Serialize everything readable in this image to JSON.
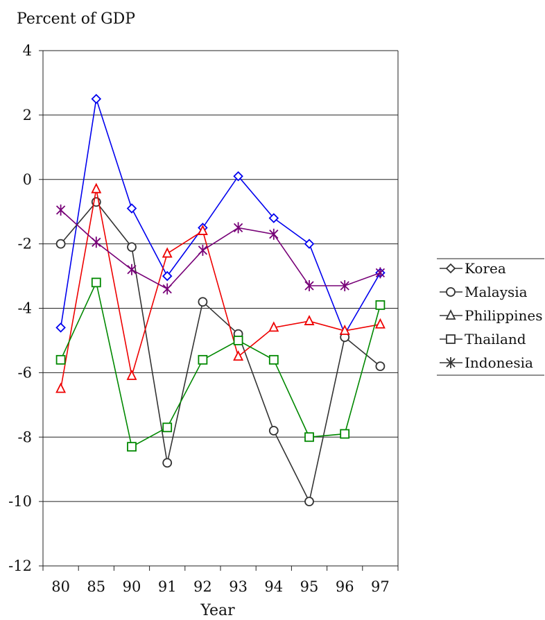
{
  "chart_data": {
    "type": "line",
    "title": "",
    "ylabel": "Percent of GDP",
    "xlabel": "Year",
    "categories": [
      "80",
      "85",
      "90",
      "91",
      "92",
      "93",
      "94",
      "95",
      "96",
      "97"
    ],
    "ylim": [
      -12,
      4
    ],
    "yticks": [
      4,
      2,
      0,
      -2,
      -4,
      -6,
      -8,
      -10,
      -12
    ],
    "ytick_labels": [
      "4",
      "2",
      "0",
      "-2",
      "-4",
      "-6",
      "-8",
      "-10",
      "-12"
    ],
    "grid": "horizontal",
    "legend_position": "right",
    "series": [
      {
        "name": "Korea",
        "marker": "diamond",
        "color": "#0000ee",
        "legend_color": "#333333",
        "values": [
          -4.6,
          2.5,
          -0.9,
          -3.0,
          -1.5,
          0.1,
          -1.2,
          -2.0,
          -4.8,
          -2.9
        ]
      },
      {
        "name": "Malaysia",
        "marker": "circle",
        "color": "#333333",
        "legend_color": "#333333",
        "values": [
          -2.0,
          -0.7,
          -2.1,
          -8.8,
          -3.8,
          -4.8,
          -7.8,
          -10.0,
          -4.9,
          -5.8
        ]
      },
      {
        "name": "Philippines",
        "marker": "triangle",
        "color": "#ee0000",
        "legend_color": "#333333",
        "values": [
          -6.5,
          -0.3,
          -6.1,
          -2.3,
          -1.6,
          -5.5,
          -4.6,
          -4.4,
          -4.7,
          -4.5
        ]
      },
      {
        "name": "Thailand",
        "marker": "square",
        "color": "#008800",
        "legend_color": "#333333",
        "values": [
          -5.6,
          -3.2,
          -8.3,
          -7.7,
          -5.6,
          -5.0,
          -5.6,
          -8.0,
          -7.9,
          -3.9
        ]
      },
      {
        "name": "Indonesia",
        "marker": "star",
        "color": "#770077",
        "legend_color": "#333333",
        "values": [
          -0.95,
          -1.95,
          -2.8,
          -3.4,
          -2.2,
          -1.5,
          -1.7,
          -3.3,
          -3.3,
          -2.9
        ]
      }
    ]
  }
}
